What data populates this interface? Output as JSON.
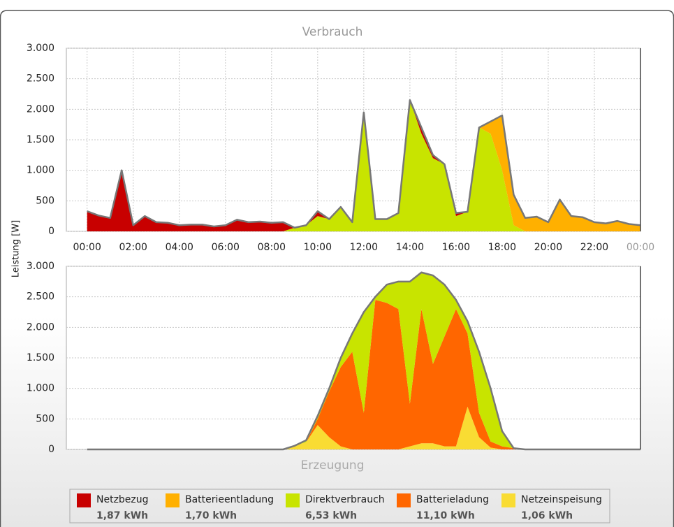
{
  "chart_data": [
    {
      "type": "area",
      "stacked": true,
      "title": "Verbrauch",
      "ylabel": "Leistung [W]",
      "x": [
        0,
        0.5,
        1,
        1.5,
        2,
        2.5,
        3,
        3.5,
        4,
        4.5,
        5,
        5.5,
        6,
        6.5,
        7,
        7.5,
        8,
        8.5,
        9,
        9.5,
        10,
        10.5,
        11,
        11.5,
        12,
        12.5,
        13,
        13.5,
        14,
        14.5,
        15,
        15.5,
        16,
        16.5,
        17,
        17.5,
        18,
        18.5,
        19,
        19.5,
        20,
        20.5,
        21,
        21.5,
        22,
        22.5,
        23,
        23.5,
        24
      ],
      "xlim": [
        -0.9,
        24
      ],
      "xticks": [
        {
          "value": 0,
          "label": "00:00"
        },
        {
          "value": 2,
          "label": "02:00"
        },
        {
          "value": 4,
          "label": "04:00"
        },
        {
          "value": 6,
          "label": "06:00"
        },
        {
          "value": 8,
          "label": "08:00"
        },
        {
          "value": 10,
          "label": "10:00"
        },
        {
          "value": 12,
          "label": "12:00"
        },
        {
          "value": 14,
          "label": "14:00"
        },
        {
          "value": 16,
          "label": "16:00"
        },
        {
          "value": 18,
          "label": "18:00"
        },
        {
          "value": 20,
          "label": "20:00"
        },
        {
          "value": 22,
          "label": "22:00"
        },
        {
          "value": 24,
          "label": "00:00"
        }
      ],
      "ylim": [
        0,
        3000
      ],
      "yticks": [
        0,
        500,
        {
          "value": 1000,
          "label": "1.000"
        },
        {
          "value": 1500,
          "label": "1.500"
        },
        {
          "value": 2000,
          "label": "2.000"
        },
        {
          "value": 2500,
          "label": "2.500"
        },
        {
          "value": 3000,
          "label": "3.000"
        }
      ],
      "grid": true,
      "series": [
        {
          "name": "Direktverbrauch",
          "color": "#c8e400",
          "total": "6,53 kWh",
          "values": [
            0,
            0,
            0,
            0,
            0,
            0,
            0,
            0,
            0,
            0,
            0,
            0,
            0,
            0,
            0,
            0,
            0,
            0,
            60,
            100,
            250,
            200,
            400,
            150,
            1950,
            200,
            200,
            300,
            2150,
            1600,
            1200,
            1100,
            250,
            320,
            1700,
            1600,
            1000,
            100,
            0,
            0,
            0,
            0,
            0,
            0,
            0,
            0,
            0,
            0,
            0
          ]
        },
        {
          "name": "Netzbezug",
          "color": "#c80000",
          "total": "1,87 kWh",
          "values": [
            330,
            260,
            220,
            1000,
            100,
            250,
            150,
            140,
            100,
            110,
            110,
            80,
            100,
            190,
            150,
            160,
            140,
            150,
            0,
            0,
            80,
            0,
            0,
            0,
            0,
            0,
            0,
            0,
            0,
            100,
            50,
            0,
            50,
            0,
            0,
            0,
            0,
            0,
            0,
            0,
            0,
            0,
            0,
            0,
            0,
            0,
            0,
            0,
            0
          ]
        },
        {
          "name": "Batterieentladung",
          "color": "#ffb000",
          "total": "1,70 kWh",
          "values": [
            0,
            0,
            0,
            0,
            0,
            0,
            0,
            0,
            0,
            0,
            0,
            0,
            0,
            0,
            0,
            0,
            0,
            0,
            0,
            0,
            0,
            0,
            0,
            0,
            0,
            0,
            0,
            0,
            0,
            0,
            0,
            0,
            0,
            0,
            0,
            200,
            900,
            500,
            220,
            240,
            150,
            520,
            250,
            230,
            150,
            130,
            170,
            120,
            100
          ]
        }
      ]
    },
    {
      "type": "area",
      "stacked": true,
      "title": "Erzeugung",
      "x": [
        0,
        0.5,
        1,
        1.5,
        2,
        2.5,
        3,
        3.5,
        4,
        4.5,
        5,
        5.5,
        6,
        6.5,
        7,
        7.5,
        8,
        8.5,
        9,
        9.5,
        10,
        10.5,
        11,
        11.5,
        12,
        12.5,
        13,
        13.5,
        14,
        14.5,
        15,
        15.5,
        16,
        16.5,
        17,
        17.5,
        18,
        18.5,
        19,
        19.5,
        20,
        20.5,
        21,
        21.5,
        22,
        22.5,
        23,
        23.5,
        24
      ],
      "xlim": [
        -0.9,
        24
      ],
      "ylim": [
        0,
        3000
      ],
      "yticks": [
        0,
        500,
        {
          "value": 1000,
          "label": "1.000"
        },
        {
          "value": 1500,
          "label": "1.500"
        },
        {
          "value": 2000,
          "label": "2.000"
        },
        {
          "value": 2500,
          "label": "2.500"
        },
        {
          "value": 3000,
          "label": "3.000"
        }
      ],
      "grid": true,
      "series": [
        {
          "name": "Netzeinspeisung",
          "color": "#f9dc33",
          "total": "1,06 kWh",
          "values": [
            0,
            0,
            0,
            0,
            0,
            0,
            0,
            0,
            0,
            0,
            0,
            0,
            0,
            0,
            0,
            0,
            0,
            0,
            60,
            120,
            400,
            200,
            50,
            0,
            0,
            0,
            0,
            0,
            50,
            100,
            100,
            50,
            50,
            700,
            200,
            30,
            0,
            0,
            0,
            0,
            0,
            0,
            0,
            0,
            0,
            0,
            0,
            0,
            0
          ]
        },
        {
          "name": "Batterieladung",
          "color": "#ff6600",
          "total": "11,10 kWh",
          "values": [
            0,
            0,
            0,
            0,
            0,
            0,
            0,
            0,
            0,
            0,
            0,
            0,
            0,
            0,
            0,
            0,
            0,
            0,
            0,
            0,
            100,
            750,
            1300,
            1600,
            600,
            2450,
            2400,
            2300,
            700,
            2200,
            1300,
            1800,
            2250,
            1200,
            400,
            100,
            50,
            20,
            0,
            0,
            0,
            0,
            0,
            0,
            0,
            0,
            0,
            0,
            0
          ]
        },
        {
          "color": "#c8e400",
          "values": [
            0,
            0,
            0,
            0,
            0,
            0,
            0,
            0,
            0,
            0,
            0,
            0,
            0,
            0,
            0,
            0,
            0,
            0,
            0,
            30,
            50,
            50,
            150,
            300,
            1650,
            50,
            300,
            450,
            2000,
            600,
            1450,
            850,
            150,
            200,
            1000,
            870,
            250,
            0,
            0,
            0,
            0,
            0,
            0,
            0,
            0,
            0,
            0,
            0,
            0
          ]
        }
      ]
    }
  ]
}
